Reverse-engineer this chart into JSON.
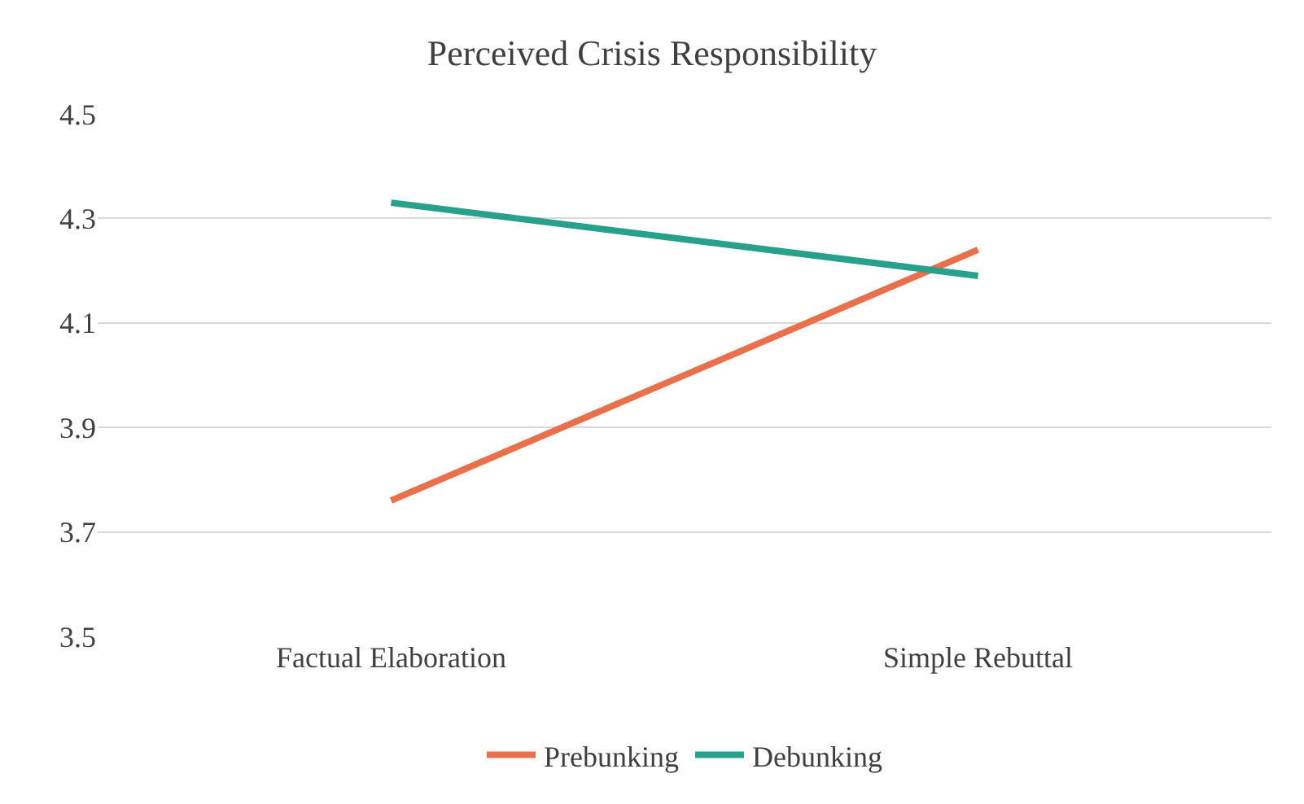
{
  "chart_data": {
    "type": "line",
    "title": "Perceived Crisis Responsibility",
    "categories": [
      "Factual Elaboration",
      "Simple Rebuttal"
    ],
    "series": [
      {
        "name": "Prebunking",
        "color": "#e8714b",
        "values": [
          3.76,
          4.24
        ]
      },
      {
        "name": "Debunking",
        "color": "#27a08c",
        "values": [
          4.33,
          4.19
        ]
      }
    ],
    "ylim": [
      3.5,
      4.5
    ],
    "yticks": [
      3.5,
      3.7,
      3.9,
      4.1,
      4.3,
      4.5
    ],
    "grid": "y",
    "legend": "bottom",
    "marker": "none",
    "line_style": "solid"
  }
}
